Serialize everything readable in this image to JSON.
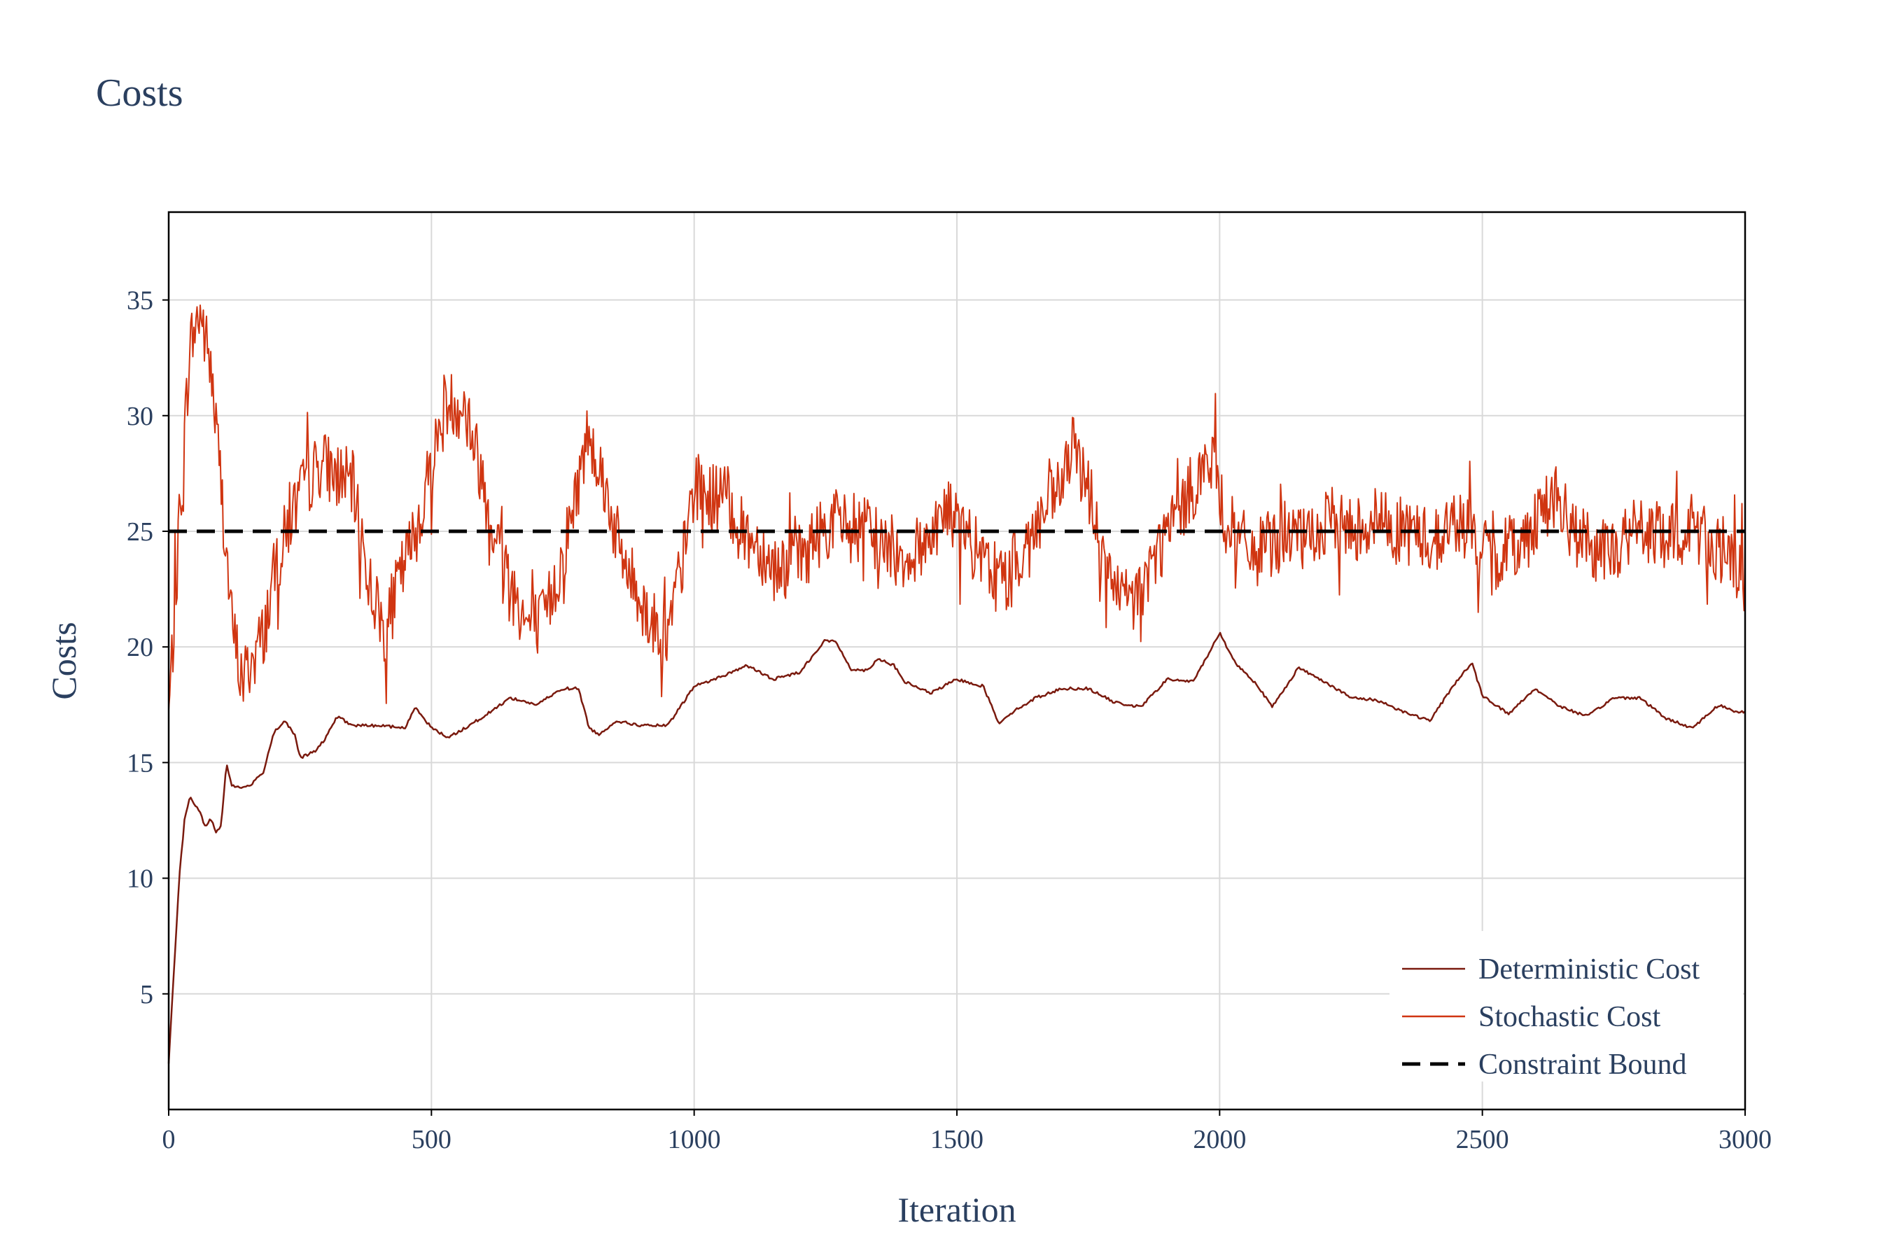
{
  "colors": {
    "deterministic": "#7a1a0e",
    "stochastic": "#d03511",
    "bound": "#000000",
    "grid": "#d9d9d9",
    "axis": "#000000",
    "text": "#2a3f5f"
  },
  "chart_data": {
    "type": "line",
    "title": "Costs",
    "xlabel": "Iteration",
    "ylabel": "Costs",
    "xlim": [
      0,
      3000
    ],
    "ylim": [
      0,
      38.8
    ],
    "grid": true,
    "legend_position": "bottom-right",
    "x_ticks": [
      "0",
      "500",
      "1000",
      "1500",
      "2000",
      "2500",
      "3000"
    ],
    "y_ticks": [
      "5",
      "10",
      "15",
      "20",
      "25",
      "30",
      "35"
    ],
    "series": [
      {
        "name": "Deterministic Cost",
        "style": "solid",
        "x": [
          0,
          10,
          20,
          30,
          40,
          50,
          60,
          70,
          80,
          90,
          100,
          110,
          120,
          140,
          160,
          180,
          200,
          220,
          240,
          250,
          280,
          300,
          320,
          350,
          400,
          450,
          470,
          500,
          530,
          550,
          600,
          650,
          700,
          750,
          780,
          800,
          820,
          850,
          900,
          950,
          1000,
          1050,
          1100,
          1150,
          1200,
          1250,
          1270,
          1300,
          1330,
          1350,
          1380,
          1400,
          1450,
          1500,
          1550,
          1580,
          1600,
          1650,
          1700,
          1750,
          1800,
          1850,
          1900,
          1950,
          2000,
          2030,
          2070,
          2100,
          2150,
          2200,
          2250,
          2300,
          2350,
          2400,
          2450,
          2480,
          2500,
          2550,
          2600,
          2650,
          2700,
          2750,
          2800,
          2850,
          2900,
          2950,
          2980,
          3000
        ],
        "values": [
          2,
          6,
          10,
          12.5,
          13.5,
          13.2,
          12.8,
          12.2,
          12.6,
          12,
          12.3,
          15,
          14,
          13.9,
          14.1,
          14.6,
          16.3,
          16.8,
          16.2,
          15.2,
          15.5,
          16.1,
          17,
          16.6,
          16.6,
          16.5,
          17.4,
          16.5,
          16.1,
          16.3,
          17,
          17.8,
          17.5,
          18.2,
          18.2,
          16.5,
          16.2,
          16.8,
          16.6,
          16.6,
          18.3,
          18.7,
          19.2,
          18.6,
          18.9,
          20.3,
          20.2,
          19,
          19,
          19.5,
          19.2,
          18.5,
          18,
          18.6,
          18.3,
          16.7,
          17.1,
          17.8,
          18.2,
          18.2,
          17.6,
          17.4,
          18.6,
          18.5,
          20.6,
          19.3,
          18.4,
          17.4,
          19.1,
          18.5,
          17.8,
          17.7,
          17.2,
          16.8,
          18.5,
          19.3,
          17.9,
          17.1,
          18.2,
          17.4,
          17,
          17.8,
          17.8,
          16.9,
          16.5,
          17.5,
          17.2,
          17.2
        ]
      },
      {
        "name": "Stochastic Cost",
        "style": "noisy",
        "x": [
          0,
          20,
          40,
          60,
          80,
          100,
          120,
          140,
          160,
          180,
          200,
          230,
          260,
          290,
          320,
          350,
          380,
          410,
          440,
          470,
          500,
          530,
          560,
          590,
          620,
          650,
          680,
          710,
          740,
          770,
          800,
          830,
          860,
          890,
          920,
          950,
          980,
          1000,
          1030,
          1060,
          1090,
          1120,
          1150,
          1180,
          1210,
          1240,
          1270,
          1300,
          1330,
          1360,
          1390,
          1420,
          1450,
          1480,
          1510,
          1540,
          1570,
          1600,
          1630,
          1660,
          1690,
          1720,
          1750,
          1780,
          1810,
          1840,
          1870,
          1900,
          1930,
          1960,
          1990,
          2010,
          2040,
          2070,
          2100,
          2130,
          2160,
          2190,
          2220,
          2250,
          2280,
          2310,
          2340,
          2370,
          2400,
          2430,
          2460,
          2490,
          2520,
          2550,
          2580,
          2610,
          2640,
          2670,
          2700,
          2730,
          2760,
          2790,
          2820,
          2850,
          2880,
          2910,
          2940,
          2970,
          3000
        ],
        "values": [
          17,
          25,
          33,
          34.5,
          32,
          27,
          21,
          18.5,
          19.5,
          20.5,
          23,
          25.5,
          27,
          28,
          27.5,
          27,
          23,
          20.5,
          23,
          25,
          28,
          30.5,
          30.5,
          28,
          25,
          23,
          21,
          21,
          23,
          26,
          29.5,
          27,
          24,
          22.5,
          21,
          20.5,
          24,
          27,
          26.5,
          26.5,
          25,
          24.5,
          23.5,
          23.5,
          24,
          25,
          25.5,
          25,
          25,
          24.5,
          24,
          24,
          25,
          26,
          25,
          24,
          23,
          23,
          24.5,
          25.5,
          26.5,
          28.5,
          27,
          23.5,
          22,
          22,
          23.5,
          25,
          26,
          27.5,
          28,
          25.5,
          24.5,
          24,
          24.5,
          25,
          24.5,
          25,
          25.5,
          25,
          25.5,
          25.5,
          25,
          25,
          24.5,
          25,
          25.5,
          24.5,
          23.5,
          24.5,
          24.5,
          26,
          26.5,
          25,
          24.5,
          24,
          24.5,
          25,
          25,
          24.5,
          25,
          25,
          24.5,
          23.5,
          23
        ]
      },
      {
        "name": "Constraint Bound",
        "style": "dashed",
        "x": [
          0,
          3000
        ],
        "values": [
          25,
          25
        ]
      }
    ]
  }
}
